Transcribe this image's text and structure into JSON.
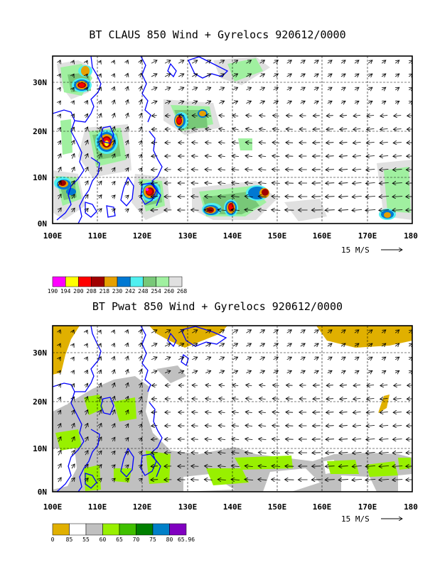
{
  "panel1": {
    "title": "BT CLAUS 850 Wind + Gyrelocs 920612/0000",
    "scale": "15 M/S",
    "legend": {
      "colors": [
        "#ff00ff",
        "#ffff00",
        "#ff0000",
        "#a00000",
        "#e6a000",
        "#0078d2",
        "#50f0f0",
        "#78c878",
        "#a0f0a0",
        "#e0e0e0"
      ],
      "labels": [
        "190",
        "194",
        "200",
        "208",
        "218",
        "230",
        "242",
        "248",
        "254",
        "260",
        "268"
      ]
    }
  },
  "panel2": {
    "title": "BT Pwat 850 Wind + Gyrelocs 920612/0000",
    "scale": "15 M/S",
    "legend": {
      "colors": [
        "#e0b000",
        "#ffffff",
        "#c0c0c0",
        "#98f000",
        "#40c000",
        "#008000",
        "#0080c8",
        "#8000c0"
      ],
      "labels": [
        "0",
        "85",
        "55",
        "60",
        "65",
        "70",
        "75",
        "80",
        "65.96"
      ]
    }
  },
  "axes": {
    "x_ticks": [
      "100E",
      "110E",
      "120E",
      "130E",
      "140E",
      "150E",
      "160E",
      "170E",
      "180"
    ],
    "y_ticks": [
      "0N",
      "10N",
      "20N",
      "30N"
    ]
  },
  "colors": {
    "coast": "#0000ff",
    "grid": "#000000"
  }
}
